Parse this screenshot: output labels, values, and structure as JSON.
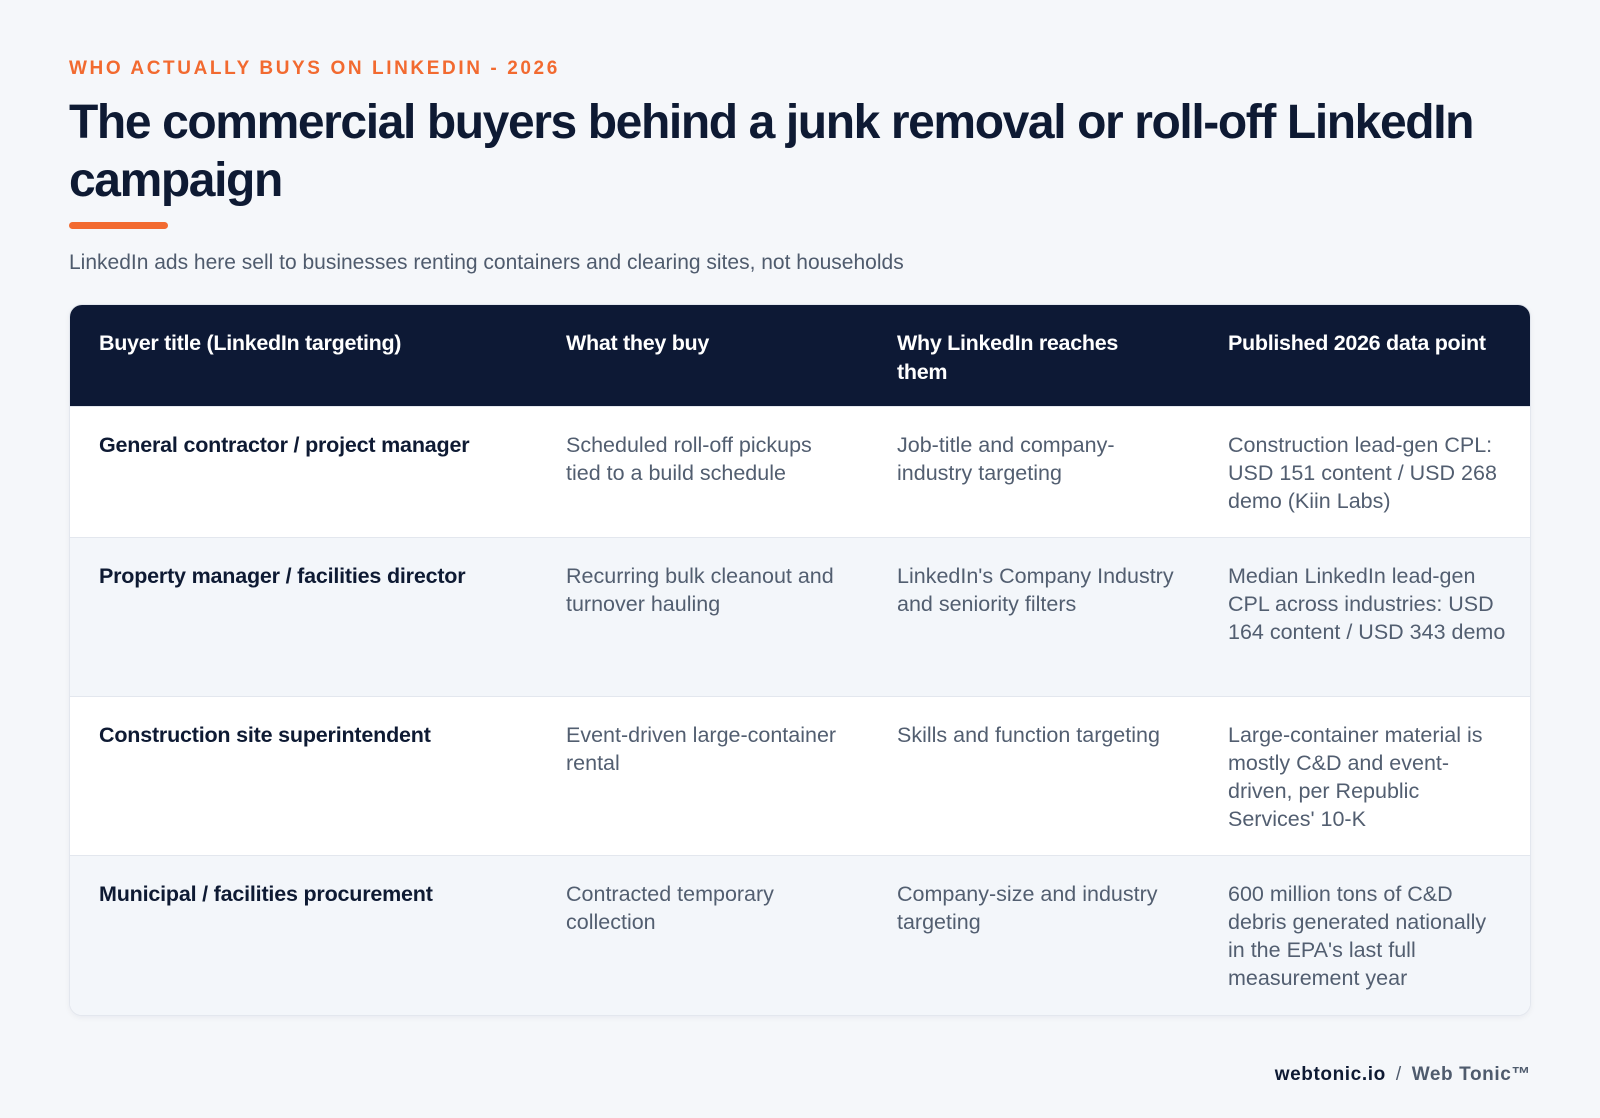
{
  "eyebrow": "WHO ACTUALLY BUYS ON LINKEDIN - 2026",
  "title": "The commercial buyers behind a junk removal or roll-off LinkedIn campaign",
  "subtitle": "LinkedIn ads here sell to businesses renting containers and clearing sites, not households",
  "colors": {
    "accent": "#f26a30",
    "header_bg": "#0d1935",
    "title": "#0e1a33",
    "body_text": "#525e70",
    "page_bg": "#f5f7fa"
  },
  "table": {
    "headers": [
      "Buyer title (LinkedIn targeting)",
      "What they buy",
      "Why LinkedIn reaches them",
      "Published 2026 data point"
    ],
    "rows": [
      [
        "General contractor / project manager",
        "Scheduled roll-off pickups tied to a build schedule",
        "Job-title and company-industry targeting",
        "Construction lead-gen CPL: USD 151 content / USD 268 demo (Kiin Labs)"
      ],
      [
        "Property manager / facilities director",
        "Recurring bulk cleanout and turnover hauling",
        "LinkedIn's Company Industry and seniority filters",
        "Median LinkedIn lead-gen CPL across industries: USD 164 content / USD 343 demo"
      ],
      [
        "Construction site superintendent",
        "Event-driven large-container rental",
        "Skills and function targeting",
        "Large-container material is mostly C&D and event-driven, per Republic Services' 10-K"
      ],
      [
        "Municipal / facilities procurement",
        "Contracted temporary collection",
        "Company-size and industry targeting",
        "600 million tons of C&D debris generated nationally in the EPA's last full measurement year"
      ]
    ]
  },
  "footer": {
    "domain": "webtonic.io",
    "separator": "/",
    "brand": "Web Tonic™"
  }
}
